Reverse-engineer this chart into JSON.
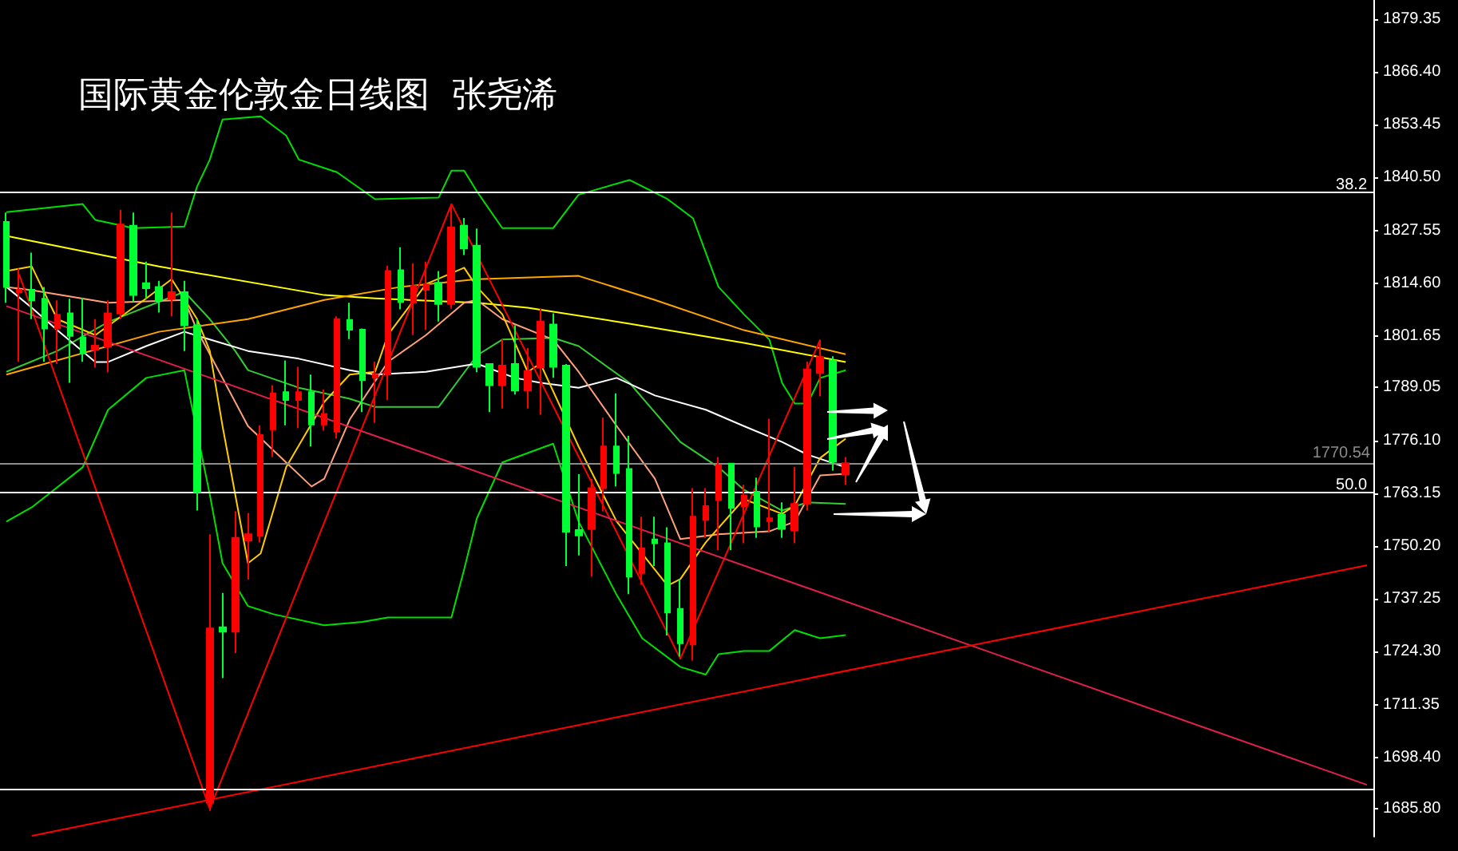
{
  "chart_data": {
    "type": "candlestick",
    "title": "国际黄金伦敦金日线图  张尧浠",
    "categories": [
      null,
      null,
      null,
      null,
      null,
      null,
      null,
      null,
      null,
      null,
      null,
      null,
      null,
      null,
      null,
      null,
      null,
      null,
      null,
      null,
      null,
      null,
      null,
      null,
      null,
      null,
      null,
      null,
      null,
      null,
      null,
      null,
      null,
      null,
      null,
      null,
      null,
      null,
      null,
      null,
      null,
      null,
      null,
      null,
      null,
      null,
      null,
      null,
      null,
      null,
      null,
      null,
      null,
      null,
      null,
      null,
      null,
      null,
      null,
      null,
      null,
      null,
      null,
      null,
      null,
      null,
      null,
      null,
      null,
      null,
      null,
      null,
      null,
      null,
      null,
      null,
      null,
      null,
      null,
      null,
      null,
      null,
      null,
      null,
      null,
      null,
      null,
      null,
      null,
      null,
      null,
      null,
      null,
      null,
      null,
      null,
      null,
      null,
      null,
      null,
      null,
      null,
      null,
      null,
      null,
      null,
      null,
      null
    ],
    "ylim": [
      1679,
      1884
    ],
    "yticks": [
      {
        "value": 1879.35,
        "label": "1879.35"
      },
      {
        "value": 1866.4,
        "label": "1866.40"
      },
      {
        "value": 1853.45,
        "label": "1853.45"
      },
      {
        "value": 1840.5,
        "label": "1840.50"
      },
      {
        "value": 1827.55,
        "label": "1827.55"
      },
      {
        "value": 1814.6,
        "label": "1814.60"
      },
      {
        "value": 1801.65,
        "label": "1801.65"
      },
      {
        "value": 1789.05,
        "label": "1789.05"
      },
      {
        "value": 1776.1,
        "label": "1776.10"
      },
      {
        "value": 1763.15,
        "label": "1763.15"
      },
      {
        "value": 1750.2,
        "label": "1750.20"
      },
      {
        "value": 1737.25,
        "label": "1737.25"
      },
      {
        "value": 1724.3,
        "label": "1724.30"
      },
      {
        "value": 1711.35,
        "label": "1711.35"
      },
      {
        "value": 1698.4,
        "label": "1698.40"
      },
      {
        "value": 1685.8,
        "label": "1685.80"
      }
    ],
    "tick_labels": "y",
    "annotations": [
      {
        "text": "38.2",
        "y": 1837.1
      },
      {
        "text": "50.0",
        "y": 1763.6
      }
    ],
    "ref_lines": [
      {
        "axis": "y",
        "value": 1837.1,
        "label": null,
        "color": "#ffffff"
      },
      {
        "axis": "y",
        "value": 1763.6,
        "label": null,
        "color": "#ffffff"
      },
      {
        "axis": "y",
        "value": 1690.5,
        "label": null,
        "color": "#ffffff"
      },
      {
        "axis": "y",
        "value": 1770.54,
        "label": "1770.54",
        "color": "#8c8c8c"
      }
    ],
    "series": [
      {
        "type": "line",
        "color": "#00e000",
        "values": [
          1832.0,
          null,
          null,
          null,
          null,
          null,
          1834.0,
          1830.1,
          null,
          null,
          1828.1,
          null,
          null,
          null,
          1828.5,
          1838.3,
          1844.9,
          1854.7,
          null,
          null,
          1855.5,
          null,
          1850.8,
          1844.9,
          null,
          null,
          1841.8,
          null,
          null,
          1835.2,
          null,
          null,
          null,
          null,
          1835.6,
          1842.2,
          1842.2,
          1837.1,
          null,
          1828.1,
          null,
          null,
          null,
          1828.1,
          null,
          1836.3,
          null,
          null,
          null,
          1839.9,
          null,
          null,
          1835.2,
          null,
          1830.5,
          null,
          1813.7,
          null,
          1807.0,
          null,
          1800.8,
          1790.2,
          1785.1,
          1785.1,
          1791.4,
          null,
          1793.3,
          null,
          null,
          null,
          null,
          null,
          null,
          null,
          null,
          null,
          null,
          null,
          null,
          null,
          null,
          null,
          null,
          null,
          null,
          null,
          null,
          null,
          null,
          null,
          null,
          null,
          null,
          null,
          null,
          null,
          null,
          null,
          null,
          null,
          null,
          null,
          null,
          null,
          null,
          null,
          null,
          null
        ]
      },
      {
        "type": "line",
        "color": "#00e000",
        "values": [
          1756.2,
          null,
          1759.7,
          null,
          null,
          null,
          1769.5,
          null,
          1783.6,
          null,
          null,
          1791.4,
          null,
          null,
          1793.3,
          null,
          1762.8,
          1746.0,
          null,
          1735.5,
          null,
          1733.5,
          null,
          null,
          null,
          1730.8,
          null,
          null,
          1731.6,
          null,
          1732.7,
          null,
          null,
          null,
          null,
          1732.7,
          1744.5,
          1757.0,
          null,
          1770.7,
          null,
          null,
          null,
          1775.3,
          null,
          1756.2,
          null,
          null,
          1738.2,
          null,
          1727.6,
          null,
          null,
          1720.6,
          null,
          1718.7,
          1723.7,
          null,
          1724.5,
          null,
          1724.5,
          null,
          1729.6,
          null,
          1727.6,
          null,
          1728.4,
          null,
          null,
          null,
          null,
          null,
          null,
          null,
          null,
          null,
          null,
          null,
          null,
          null,
          null,
          null,
          null,
          null,
          null,
          null,
          null,
          null,
          null,
          null,
          null,
          null,
          null,
          null,
          null,
          null,
          null,
          null,
          null,
          null,
          null,
          null,
          null,
          null,
          null,
          null,
          null,
          null
        ]
      },
      {
        "type": "line",
        "color": "#33cc33",
        "values": [
          1792.9,
          null,
          null,
          null,
          1798.0,
          null,
          null,
          null,
          1805.1,
          null,
          null,
          null,
          null,
          null,
          1812.5,
          null,
          1805.8,
          null,
          1798.0,
          1793.3,
          null,
          null,
          null,
          1789.0,
          null,
          null,
          null,
          1786.3,
          null,
          1784.3,
          null,
          null,
          null,
          null,
          1784.3,
          null,
          null,
          1796.9,
          null,
          1800.8,
          null,
          null,
          null,
          1801.2,
          null,
          1799.2,
          null,
          null,
          null,
          1790.2,
          null,
          null,
          null,
          1775.7,
          null,
          null,
          1769.5,
          null,
          1764.0,
          null,
          null,
          1758.9,
          null,
          1760.9,
          null,
          null,
          1760.5,
          null,
          null,
          null,
          null,
          null,
          null,
          null,
          null,
          null,
          null,
          null,
          null,
          null,
          null,
          null,
          null,
          null,
          null,
          null,
          null,
          null,
          null,
          null,
          null,
          null,
          null,
          null,
          null,
          null,
          null,
          null,
          null,
          null,
          null,
          null,
          null,
          null,
          null,
          null,
          null,
          null
        ]
      },
      {
        "type": "line",
        "color": "#ffffff",
        "values": [
          1813.7,
          null,
          1808.6,
          null,
          1803.1,
          null,
          null,
          1795.3,
          1795.3,
          null,
          null,
          1799.2,
          null,
          null,
          1802.7,
          null,
          null,
          null,
          null,
          1798.0,
          null,
          null,
          null,
          1796.1,
          null,
          null,
          null,
          1793.3,
          null,
          1792.2,
          null,
          null,
          null,
          1792.9,
          null,
          null,
          null,
          1794.9,
          null,
          null,
          1791.4,
          null,
          1790.2,
          null,
          null,
          1789.0,
          null,
          null,
          1791.4,
          null,
          null,
          1787.1,
          null,
          null,
          null,
          1783.6,
          null,
          null,
          1779.6,
          null,
          null,
          1775.7,
          null,
          1772.6,
          null,
          null,
          1769.5,
          null,
          null,
          null,
          null,
          null,
          null,
          null,
          null,
          null,
          null,
          null,
          null,
          null,
          null,
          null,
          null,
          null,
          null,
          null,
          null,
          null,
          null,
          null,
          null,
          null,
          null,
          null,
          null,
          null,
          null,
          null,
          null,
          null,
          null,
          null,
          null,
          null,
          null,
          null,
          null,
          null
        ]
      },
      {
        "type": "line",
        "color": "#ffff00",
        "values": [
          1826.2,
          null,
          null,
          null,
          null,
          null,
          null,
          null,
          null,
          null,
          null,
          null,
          1818.7,
          null,
          null,
          null,
          null,
          null,
          null,
          null,
          null,
          null,
          null,
          null,
          null,
          1811.7,
          null,
          null,
          null,
          1810.9,
          null,
          null,
          null,
          null,
          null,
          null,
          null,
          1809.8,
          null,
          null,
          null,
          1808.6,
          null,
          null,
          null,
          null,
          null,
          null,
          null,
          1804.7,
          null,
          null,
          null,
          null,
          null,
          null,
          null,
          null,
          1800.0,
          null,
          null,
          null,
          null,
          null,
          null,
          null,
          1795.3,
          null,
          null,
          null,
          null,
          null,
          null,
          null,
          null,
          null,
          null,
          null,
          null,
          null,
          null,
          null,
          null,
          null,
          null,
          null,
          null,
          null,
          null,
          null,
          null,
          null,
          null,
          null,
          null,
          null,
          null,
          null,
          null,
          null,
          null,
          null,
          null,
          null,
          null,
          null,
          null,
          null
        ]
      },
      {
        "type": "line",
        "color": "#ffa500",
        "values": [
          1792.2,
          null,
          null,
          null,
          null,
          null,
          null,
          null,
          null,
          null,
          null,
          null,
          1802.7,
          null,
          null,
          null,
          null,
          null,
          null,
          1805.8,
          null,
          null,
          null,
          null,
          null,
          1810.5,
          null,
          null,
          null,
          null,
          null,
          1813.7,
          null,
          null,
          null,
          null,
          null,
          1815.6,
          null,
          null,
          null,
          null,
          null,
          null,
          null,
          1816.4,
          null,
          null,
          null,
          null,
          null,
          1810.5,
          null,
          null,
          null,
          null,
          null,
          null,
          1803.1,
          null,
          null,
          null,
          null,
          null,
          null,
          null,
          1797.2,
          null,
          null,
          null,
          null,
          null,
          null,
          null,
          null,
          null,
          null,
          null,
          null,
          null,
          null,
          null,
          null,
          null,
          null,
          null,
          null,
          null,
          null,
          null,
          null,
          null,
          null,
          null,
          null,
          null,
          null,
          null,
          null,
          null,
          null,
          null,
          null,
          null,
          null,
          null,
          null,
          null
        ]
      },
      {
        "type": "line",
        "color": "#ffa07a",
        "values": [
          1813.7,
          null,
          1812.9,
          null,
          null,
          null,
          null,
          null,
          1809.8,
          null,
          null,
          null,
          null,
          null,
          1810.5,
          1803.1,
          null,
          null,
          null,
          1779.6,
          null,
          null,
          1770.7,
          null,
          1764.8,
          1766.7,
          null,
          1781.2,
          null,
          null,
          1795.3,
          null,
          null,
          1801.9,
          null,
          null,
          1809.8,
          1810.5,
          null,
          1805.8,
          null,
          null,
          null,
          1800.8,
          null,
          1792.9,
          null,
          null,
          1779.6,
          null,
          null,
          1766.7,
          null,
          1751.9,
          null,
          null,
          1753.1,
          null,
          null,
          null,
          1753.8,
          null,
          1756.2,
          null,
          1767.5,
          null,
          1767.9,
          null,
          null,
          null,
          null,
          null,
          null,
          null,
          null,
          null,
          null,
          null,
          null,
          null,
          null,
          null,
          null,
          null,
          null,
          null,
          null,
          null,
          null,
          null,
          null,
          null,
          null,
          null,
          null,
          null,
          null,
          null,
          null,
          null,
          null,
          null,
          null,
          null,
          null,
          null,
          null,
          null
        ]
      },
      {
        "type": "line",
        "color": "#ffcc00",
        "values": [
          1817.6,
          null,
          1818.7,
          null,
          1805.8,
          null,
          null,
          1801.9,
          null,
          null,
          null,
          1810.9,
          null,
          1815.6,
          null,
          1805.8,
          1798.0,
          1779.6,
          null,
          1746.0,
          1748.4,
          null,
          1769.5,
          null,
          null,
          1785.5,
          null,
          1792.2,
          null,
          1792.9,
          1801.9,
          null,
          null,
          1814.4,
          null,
          null,
          1818.4,
          1813.7,
          null,
          1807.0,
          null,
          1792.9,
          1794.9,
          null,
          null,
          1774.6,
          null,
          null,
          1756.2,
          null,
          null,
          null,
          1740.5,
          1742.1,
          null,
          1751.1,
          null,
          null,
          1761.7,
          null,
          null,
          1758.1,
          1760.1,
          null,
          1771.8,
          null,
          1776.5,
          null,
          null,
          null,
          null,
          null,
          null,
          null,
          null,
          null,
          null,
          null,
          null,
          null,
          null,
          null,
          null,
          null,
          null,
          null,
          null,
          null,
          null,
          null,
          null,
          null,
          null,
          null,
          null,
          null,
          null,
          null,
          null,
          null,
          null,
          null,
          null,
          null,
          null,
          null,
          null,
          null
        ]
      },
      {
        "type": "line",
        "color": "#ff0000",
        "values": [
          null,
          1816.8,
          null,
          null,
          null,
          null,
          null,
          null,
          null,
          null,
          null,
          null,
          null,
          null,
          null,
          null,
          1685.8,
          null,
          null,
          null,
          null,
          null,
          null,
          null,
          null,
          null,
          null,
          null,
          null,
          null,
          null,
          null,
          null,
          null,
          null,
          1834.0,
          null,
          null,
          null,
          null,
          null,
          null,
          null,
          null,
          null,
          null,
          null,
          null,
          null,
          null,
          null,
          null,
          null,
          1722.6,
          null,
          null,
          null,
          null,
          null,
          null,
          null,
          null,
          null,
          null,
          1800.8,
          null,
          null,
          null,
          null,
          null,
          null,
          null,
          null,
          null,
          null,
          null,
          null,
          null,
          null,
          null,
          null,
          null,
          null,
          null,
          null,
          null,
          null,
          null,
          null,
          null,
          null,
          null,
          null,
          null,
          null,
          null,
          null,
          null,
          null,
          null,
          null,
          null,
          null,
          null,
          null,
          null,
          null,
          null
        ]
      },
      {
        "type": "line",
        "color": "#e0204a",
        "values": [
          1809.0,
          null,
          null,
          null,
          null,
          null,
          null,
          null,
          null,
          null,
          null,
          null,
          null,
          null,
          null,
          null,
          null,
          null,
          null,
          null,
          null,
          null,
          null,
          null,
          null,
          null,
          null,
          null,
          null,
          null,
          null,
          null,
          null,
          null,
          null,
          null,
          null,
          null,
          null,
          null,
          null,
          null,
          null,
          null,
          null,
          null,
          null,
          null,
          null,
          null,
          null,
          null,
          null,
          null,
          null,
          null,
          null,
          null,
          null,
          null,
          null,
          null,
          null,
          null,
          null,
          null,
          null,
          null,
          null,
          null,
          null,
          null,
          null,
          null,
          null,
          null,
          null,
          null,
          null,
          null,
          null,
          null,
          null,
          null,
          null,
          null,
          null,
          null,
          null,
          null,
          null,
          null,
          null,
          null,
          null,
          null,
          null,
          null,
          null,
          null,
          null,
          null,
          null,
          null,
          null,
          null,
          null,
          1691.7
        ]
      },
      {
        "type": "line",
        "color": "#ff0000",
        "values": [
          null,
          null,
          1679.2,
          null,
          null,
          null,
          null,
          null,
          null,
          null,
          null,
          null,
          null,
          null,
          null,
          null,
          null,
          null,
          null,
          null,
          null,
          null,
          null,
          null,
          null,
          null,
          null,
          null,
          null,
          null,
          null,
          null,
          null,
          null,
          null,
          null,
          null,
          null,
          null,
          null,
          null,
          null,
          null,
          null,
          null,
          null,
          null,
          null,
          null,
          null,
          null,
          null,
          null,
          null,
          null,
          null,
          null,
          null,
          null,
          null,
          null,
          null,
          null,
          null,
          null,
          null,
          null,
          null,
          null,
          null,
          null,
          null,
          null,
          null,
          null,
          null,
          null,
          null,
          null,
          null,
          null,
          null,
          null,
          null,
          null,
          null,
          null,
          null,
          null,
          null,
          null,
          null,
          null,
          null,
          null,
          null,
          null,
          null,
          null,
          null,
          null,
          null,
          null,
          null,
          null,
          null,
          null,
          1745.5
        ]
      },
      {
        "colors": [
          "#00ff33",
          "#ff0000",
          "#00ff33",
          "#00ff33",
          "#ff0000",
          "#00ff33",
          "#00ff33",
          "#ff0000",
          "#ff0000",
          "#ff0000",
          "#00ff33",
          "#00ff33",
          "#00ff33",
          "#ff0000",
          "#00ff33",
          "#00ff33",
          "#ff0000",
          "#00ff33",
          "#ff0000",
          "#ff0000",
          "#ff0000",
          "#ff0000",
          "#00ff33",
          "#ff0000",
          "#00ff33",
          "#ff0000",
          "#ff0000",
          "#00ff33",
          "#00ff33",
          "#ff0000",
          "#ff0000",
          "#00ff33",
          "#ff0000",
          "#ff0000",
          "#00ff33",
          "#ff0000",
          "#00ff33",
          "#00ff33",
          "#00ff33",
          "#ff0000",
          "#00ff33",
          "#ff0000",
          "#ff0000",
          "#00ff33",
          "#00ff33",
          "#00ff33",
          "#ff0000",
          "#ff0000",
          "#00ff33",
          "#00ff33",
          "#ff0000",
          "#00ff33",
          "#00ff33",
          "#00ff33",
          "#ff0000",
          "#ff0000",
          "#ff0000",
          "#00ff33",
          "#ff0000",
          "#00ff33",
          "#ff0000",
          "#00ff33",
          "#ff0000",
          "#ff0000",
          "#ff0000",
          "#00ff33",
          "#ff0000",
          null,
          null,
          null,
          null,
          null,
          null,
          null,
          null,
          null,
          null,
          null,
          null,
          null,
          null,
          null,
          null,
          null,
          null,
          null,
          null,
          null,
          null,
          null,
          null,
          null,
          null,
          null,
          null,
          null,
          null,
          null,
          null,
          null,
          null,
          null,
          null,
          null,
          null,
          null,
          null,
          null
        ],
        "ohlc": [
          [
            1829.6,
            1831.9,
            1809.8,
            1813.7
          ],
          [
            1812.4,
            1818.2,
            1795.4,
            1813.0
          ],
          [
            1813.0,
            1822.1,
            1805.8,
            1810.4
          ],
          [
            1810.8,
            1813.7,
            1795.4,
            1803.5
          ],
          [
            1803.5,
            1810.4,
            1794.8,
            1806.9
          ],
          [
            1807.2,
            1810.8,
            1790.2,
            1801.7
          ],
          [
            1801.3,
            1811.0,
            1795.4,
            1797.4
          ],
          [
            1798.3,
            1805.8,
            1793.9,
            1799.3
          ],
          [
            1799.1,
            1810.4,
            1792.8,
            1807.2
          ],
          [
            1807.2,
            1832.6,
            1805.8,
            1829.0
          ],
          [
            1828.7,
            1831.9,
            1810.0,
            1811.7
          ],
          [
            1814.6,
            1819.9,
            1810.8,
            1813.4
          ],
          [
            1813.7,
            1815.2,
            1807.4,
            1810.4
          ],
          [
            1810.8,
            1831.9,
            1806.5,
            1812.4
          ],
          [
            1812.4,
            1815.2,
            1798.0,
            1804.3
          ],
          [
            1804.3,
            1805.8,
            1758.9,
            1763.5
          ],
          [
            1687.3,
            1753.1,
            1685.3,
            1730.0
          ],
          [
            1730.3,
            1738.7,
            1717.9,
            1729.2
          ],
          [
            1729.2,
            1758.7,
            1724.0,
            1752.2
          ],
          [
            1751.5,
            1758.3,
            1742.0,
            1753.1
          ],
          [
            1752.7,
            1779.8,
            1751.1,
            1777.4
          ],
          [
            1778.8,
            1789.6,
            1772.0,
            1787.6
          ],
          [
            1787.9,
            1795.7,
            1779.8,
            1786.0
          ],
          [
            1786.0,
            1794.1,
            1779.1,
            1787.9
          ],
          [
            1787.9,
            1792.2,
            1774.6,
            1780.0
          ],
          [
            1780.0,
            1788.6,
            1778.5,
            1782.6
          ],
          [
            1778.2,
            1806.5,
            1776.5,
            1805.8
          ],
          [
            1805.6,
            1809.8,
            1800.9,
            1803.2
          ],
          [
            1803.2,
            1803.5,
            1783.0,
            1790.9
          ],
          [
            1791.5,
            1795.4,
            1780.4,
            1792.2
          ],
          [
            1792.2,
            1818.9,
            1786.0,
            1817.6
          ],
          [
            1817.8,
            1823.4,
            1808.2,
            1810.0
          ],
          [
            1809.8,
            1819.5,
            1801.9,
            1813.9
          ],
          [
            1813.0,
            1819.9,
            1803.2,
            1814.3
          ],
          [
            1814.7,
            1817.6,
            1805.2,
            1809.5
          ],
          [
            1809.5,
            1833.5,
            1808.4,
            1828.3
          ],
          [
            1828.7,
            1830.6,
            1821.5,
            1823.1
          ],
          [
            1823.8,
            1828.0,
            1792.8,
            1794.1
          ],
          [
            1794.8,
            1794.8,
            1783.0,
            1789.6
          ],
          [
            1789.6,
            1800.9,
            1783.9,
            1794.4
          ],
          [
            1794.8,
            1804.3,
            1787.3,
            1788.3
          ],
          [
            1788.3,
            1798.7,
            1783.9,
            1793.1
          ],
          [
            1793.9,
            1808.4,
            1782.4,
            1805.2
          ],
          [
            1804.5,
            1807.2,
            1791.5,
            1794.1
          ],
          [
            1794.4,
            1794.8,
            1745.3,
            1753.7
          ],
          [
            1754.1,
            1767.8,
            1747.9,
            1752.8
          ],
          [
            1754.4,
            1766.7,
            1742.7,
            1764.4
          ],
          [
            1764.4,
            1781.7,
            1758.7,
            1774.6
          ],
          [
            1774.6,
            1787.6,
            1764.8,
            1768.1
          ],
          [
            1769.1,
            1777.2,
            1738.4,
            1742.7
          ],
          [
            1743.6,
            1757.4,
            1740.7,
            1749.6
          ],
          [
            1751.8,
            1757.4,
            1745.3,
            1750.9
          ],
          [
            1750.9,
            1754.8,
            1728.3,
            1733.9
          ],
          [
            1734.8,
            1742.0,
            1723.1,
            1726.4
          ],
          [
            1726.1,
            1764.4,
            1722.2,
            1757.4
          ],
          [
            1756.6,
            1764.4,
            1752.2,
            1760.0
          ],
          [
            1761.5,
            1772.0,
            1749.2,
            1770.0
          ],
          [
            1770.4,
            1770.4,
            1749.2,
            1759.6
          ],
          [
            1760.0,
            1765.2,
            1750.9,
            1762.6
          ],
          [
            1763.5,
            1767.0,
            1752.2,
            1755.0
          ],
          [
            1756.3,
            1781.4,
            1753.7,
            1757.0
          ],
          [
            1757.9,
            1760.9,
            1752.2,
            1754.4
          ],
          [
            1754.0,
            1769.6,
            1750.9,
            1760.5
          ],
          [
            1760.5,
            1795.4,
            1758.9,
            1793.5
          ],
          [
            1792.6,
            1800.6,
            1786.9,
            1796.5
          ],
          [
            1795.7,
            1796.7,
            1768.7,
            1770.9
          ],
          [
            1767.8,
            1772.0,
            1765.2,
            1770.5
          ],
          null,
          null,
          null,
          null,
          null,
          null,
          null,
          null,
          null,
          null,
          null,
          null,
          null,
          null,
          null,
          null,
          null,
          null,
          null,
          null,
          null,
          null,
          null,
          null,
          null,
          null,
          null,
          null,
          null,
          null,
          null,
          null,
          null,
          null,
          null,
          null,
          null,
          null,
          null,
          null,
          null
        ]
      }
    ]
  }
}
